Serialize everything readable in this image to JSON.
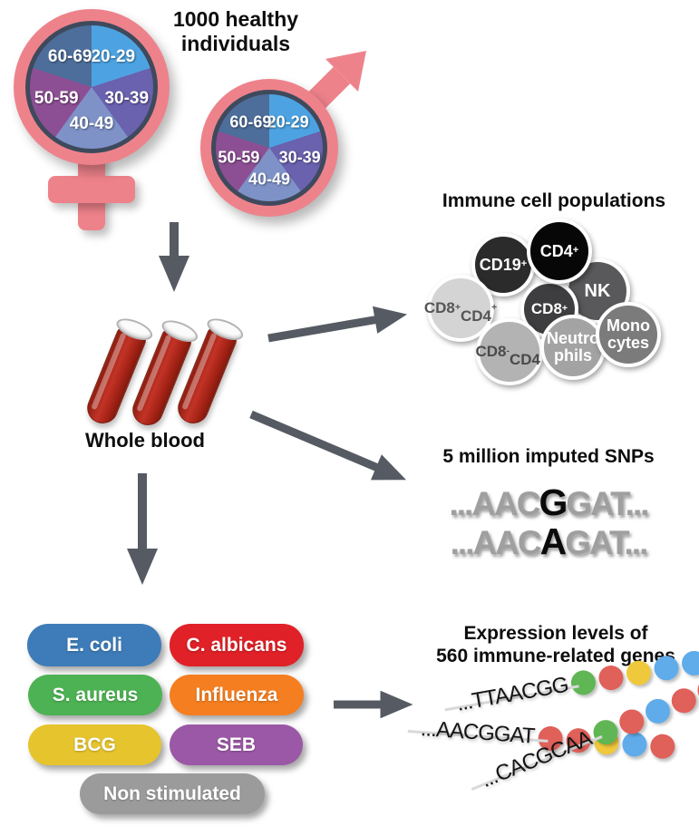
{
  "header": {
    "title": "1000 healthy individuals"
  },
  "cohort": {
    "female_symbol": "female",
    "male_symbol": "male",
    "pie": {
      "segments": [
        {
          "label": "20-29",
          "color": "#4da3e2"
        },
        {
          "label": "30-39",
          "color": "#6a61af"
        },
        {
          "label": "40-49",
          "color": "#7e92c8"
        },
        {
          "label": "50-59",
          "color": "#8d4f94"
        },
        {
          "label": "60-69",
          "color": "#4d6e9b"
        }
      ]
    },
    "symbol_color": "#ee828b",
    "pie_outline_color": "#3e4a5c"
  },
  "whole_blood": {
    "label": "Whole blood",
    "tube_color": "#b1271a",
    "tube_count": 3
  },
  "immune_cells": {
    "title": "Immune cell populations",
    "cells": [
      {
        "lines": [
          "CD19+"
        ],
        "fill": "#2b2b2b",
        "text_color": "#ffffff"
      },
      {
        "lines": [
          "CD4+"
        ],
        "fill": "#070707",
        "text_color": "#ffffff"
      },
      {
        "lines": [
          "NK"
        ],
        "fill": "#59595b",
        "text_color": "#ffffff"
      },
      {
        "lines": [
          "CD8+",
          "CD4+"
        ],
        "fill": "#d4d4d4",
        "text_color": "#555555"
      },
      {
        "lines": [
          "CD8+"
        ],
        "fill": "#3e3e40",
        "text_color": "#ffffff"
      },
      {
        "lines": [
          "Mono",
          "cytes"
        ],
        "fill": "#7b7b7b",
        "text_color": "#ffffff"
      },
      {
        "lines": [
          "CD8-",
          "CD4-"
        ],
        "fill": "#b3b3b3",
        "text_color": "#4a4a4a"
      },
      {
        "lines": [
          "Neutro",
          "phils"
        ],
        "fill": "#a3a3a3",
        "text_color": "#ffffff"
      }
    ]
  },
  "snps": {
    "title": "5 million imputed SNPs",
    "sequences": [
      {
        "prefix": "...AAC",
        "variant": "G",
        "suffix": "GAT..."
      },
      {
        "prefix": "...AAC",
        "variant": "A",
        "suffix": "GAT..."
      }
    ],
    "base_color": "#9f9f9f",
    "variant_color": "#0b0b0b"
  },
  "stimuli": {
    "items": [
      {
        "label": "E. coli",
        "color": "#3d7cb8"
      },
      {
        "label": "C. albicans",
        "color": "#e02127"
      },
      {
        "label": "S. aureus",
        "color": "#4db253"
      },
      {
        "label": "Influenza",
        "color": "#f57e20"
      },
      {
        "label": "BCG",
        "color": "#e6c42d"
      },
      {
        "label": "SEB",
        "color": "#9b58a6"
      },
      {
        "label": "Non stimulated",
        "color": "#9b9b9b"
      }
    ]
  },
  "expression": {
    "title_line1": "Expression levels of",
    "title_line2": "560 immune-related genes",
    "strands": [
      {
        "sequence": "...TTAACGG",
        "dots": [
          "green",
          "red",
          "yellow",
          "blue",
          "blue"
        ]
      },
      {
        "sequence": "...AACGGAT",
        "dots": [
          "red",
          "red",
          "yellow",
          "blue",
          "red"
        ]
      },
      {
        "sequence": "...CACGCAA",
        "dots": [
          "green",
          "red",
          "blue",
          "red",
          "red"
        ]
      }
    ],
    "dot_colors": {
      "green": "#60b655",
      "red": "#e0605a",
      "yellow": "#efc83b",
      "blue": "#60aceb"
    }
  },
  "arrow_color": "#565b63"
}
